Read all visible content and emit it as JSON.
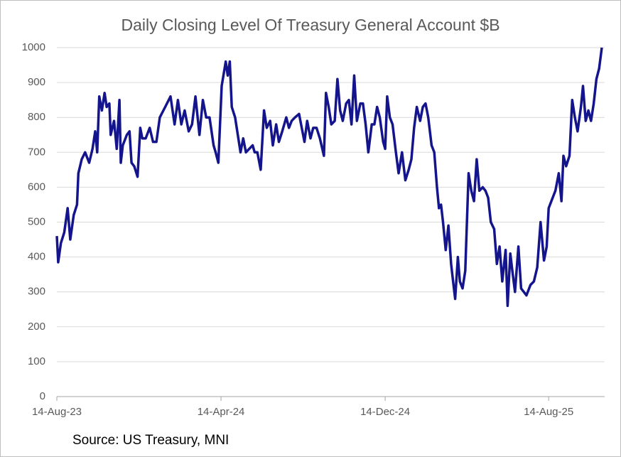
{
  "chart_data": {
    "type": "line",
    "title": "Daily Closing Level Of Treasury General Account $B",
    "source": "Source: US Treasury, MNI",
    "x": [
      "2023-08-14",
      "2023-08-16",
      "2023-08-20",
      "2023-08-25",
      "2023-08-30",
      "2023-09-03",
      "2023-09-08",
      "2023-09-13",
      "2023-09-15",
      "2023-09-20",
      "2023-09-25",
      "2023-10-01",
      "2023-10-06",
      "2023-10-10",
      "2023-10-13",
      "2023-10-16",
      "2023-10-20",
      "2023-10-24",
      "2023-10-27",
      "2023-10-31",
      "2023-11-02",
      "2023-11-07",
      "2023-11-11",
      "2023-11-15",
      "2023-11-17",
      "2023-11-20",
      "2023-11-26",
      "2023-11-30",
      "2023-12-03",
      "2023-12-07",
      "2023-12-12",
      "2023-12-16",
      "2023-12-19",
      "2023-12-24",
      "2023-12-30",
      "2024-01-04",
      "2024-01-09",
      "2024-01-14",
      "2024-01-22",
      "2024-01-30",
      "2024-02-05",
      "2024-02-10",
      "2024-02-15",
      "2024-02-20",
      "2024-02-26",
      "2024-03-02",
      "2024-03-07",
      "2024-03-13",
      "2024-03-18",
      "2024-03-23",
      "2024-03-28",
      "2024-04-03",
      "2024-04-06",
      "2024-04-10",
      "2024-04-15",
      "2024-04-21",
      "2024-04-24",
      "2024-04-27",
      "2024-04-30",
      "2024-05-05",
      "2024-05-09",
      "2024-05-13",
      "2024-05-17",
      "2024-05-21",
      "2024-05-26",
      "2024-05-31",
      "2024-06-03",
      "2024-06-07",
      "2024-06-12",
      "2024-06-17",
      "2024-06-21",
      "2024-06-26",
      "2024-06-30",
      "2024-07-05",
      "2024-07-09",
      "2024-07-14",
      "2024-07-20",
      "2024-07-24",
      "2024-07-28",
      "2024-08-02",
      "2024-08-08",
      "2024-08-12",
      "2024-08-16",
      "2024-08-20",
      "2024-08-25",
      "2024-08-29",
      "2024-09-03",
      "2024-09-08",
      "2024-09-14",
      "2024-09-17",
      "2024-09-21",
      "2024-09-25",
      "2024-09-30",
      "2024-10-04",
      "2024-10-08",
      "2024-10-12",
      "2024-10-17",
      "2024-10-21",
      "2024-10-25",
      "2024-10-29",
      "2024-11-02",
      "2024-11-07",
      "2024-11-11",
      "2024-11-15",
      "2024-11-19",
      "2024-11-24",
      "2024-11-28",
      "2024-12-02",
      "2024-12-06",
      "2024-12-11",
      "2024-12-14",
      "2024-12-17",
      "2024-12-21",
      "2024-12-25",
      "2024-12-30",
      "2025-01-03",
      "2025-01-08",
      "2025-01-13",
      "2025-01-18",
      "2025-01-22",
      "2025-01-26",
      "2025-01-30",
      "2025-02-04",
      "2025-02-08",
      "2025-02-12",
      "2025-02-16",
      "2025-02-21",
      "2025-02-25",
      "2025-03-01",
      "2025-03-04",
      "2025-03-07",
      "2025-03-10",
      "2025-03-14",
      "2025-03-18",
      "2025-03-22",
      "2025-03-25",
      "2025-03-28",
      "2025-04-01",
      "2025-04-04",
      "2025-04-08",
      "2025-04-12",
      "2025-04-17",
      "2025-04-21",
      "2025-04-25",
      "2025-04-29",
      "2025-05-03",
      "2025-05-08",
      "2025-05-12",
      "2025-05-16",
      "2025-05-20",
      "2025-05-25",
      "2025-05-29",
      "2025-06-02",
      "2025-06-06",
      "2025-06-11",
      "2025-06-14",
      "2025-06-18",
      "2025-06-21",
      "2025-06-25",
      "2025-06-30",
      "2025-07-04",
      "2025-07-08",
      "2025-07-12",
      "2025-07-18",
      "2025-07-23",
      "2025-07-28",
      "2025-08-02",
      "2025-08-07",
      "2025-08-11",
      "2025-08-14",
      "2025-08-18",
      "2025-08-24",
      "2025-08-29",
      "2025-09-02",
      "2025-09-05",
      "2025-09-09",
      "2025-09-14",
      "2025-09-18",
      "2025-09-22",
      "2025-09-26",
      "2025-10-01",
      "2025-10-04",
      "2025-10-08",
      "2025-10-12",
      "2025-10-16",
      "2025-10-20",
      "2025-10-24",
      "2025-10-28",
      "2025-11-01"
    ],
    "series": [
      {
        "name": "TGA",
        "color": "#14148c",
        "values": [
          460,
          385,
          440,
          470,
          540,
          450,
          520,
          550,
          640,
          680,
          700,
          670,
          710,
          760,
          700,
          860,
          820,
          870,
          830,
          840,
          750,
          790,
          710,
          850,
          670,
          720,
          750,
          760,
          670,
          660,
          630,
          770,
          740,
          740,
          770,
          730,
          730,
          800,
          830,
          860,
          780,
          850,
          780,
          820,
          760,
          780,
          860,
          750,
          850,
          800,
          800,
          720,
          700,
          670,
          890,
          960,
          920,
          960,
          830,
          800,
          750,
          700,
          740,
          700,
          710,
          720,
          700,
          700,
          650,
          820,
          770,
          790,
          720,
          780,
          730,
          760,
          800,
          770,
          790,
          800,
          810,
          770,
          730,
          790,
          740,
          770,
          770,
          740,
          690,
          870,
          830,
          780,
          790,
          910,
          820,
          790,
          840,
          850,
          780,
          920,
          790,
          840,
          840,
          780,
          700,
          780,
          780,
          830,
          800,
          730,
          710,
          860,
          800,
          780,
          700,
          640,
          700,
          620,
          650,
          680,
          770,
          830,
          790,
          830,
          840,
          800,
          720,
          700,
          600,
          540,
          550,
          500,
          420,
          490,
          380,
          330,
          280,
          400,
          330,
          310,
          360,
          640,
          590,
          560,
          680,
          590,
          600,
          590,
          570,
          500,
          480,
          380,
          430,
          330,
          420,
          260,
          410,
          360,
          300,
          430,
          310,
          300,
          290,
          320,
          330,
          370,
          500,
          390,
          430,
          540,
          560,
          590,
          640,
          560,
          690,
          660,
          690,
          850,
          800,
          760,
          830,
          890,
          790,
          820,
          790,
          840,
          910,
          940,
          1000
        ]
      }
    ],
    "xlim": [
      "2023-08-14",
      "2025-11-01"
    ],
    "xticks": [
      {
        "value": "2023-08-14",
        "label": "14-Aug-23"
      },
      {
        "value": "2024-04-14",
        "label": "14-Apr-24"
      },
      {
        "value": "2024-12-14",
        "label": "14-Dec-24"
      },
      {
        "value": "2025-08-14",
        "label": "14-Aug-25"
      }
    ],
    "ylim": [
      0,
      1000
    ],
    "yticks": [
      0,
      100,
      200,
      300,
      400,
      500,
      600,
      700,
      800,
      900,
      1000
    ],
    "grid": true
  }
}
